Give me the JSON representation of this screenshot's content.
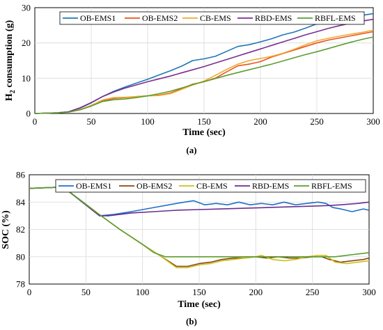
{
  "chart_data": [
    {
      "type": "line",
      "caption": "(a)",
      "xlabel": "Time (sec)",
      "ylabel_main": "H",
      "ylabel_sub": "2",
      "ylabel_rest": " consumption (g)",
      "xlim": [
        0,
        300
      ],
      "ylim": [
        0,
        30
      ],
      "xticks": [
        "0",
        "50",
        "100",
        "150",
        "200",
        "250",
        "300"
      ],
      "yticks": [
        "0",
        "10",
        "20",
        "30"
      ],
      "grid": true,
      "legend_position": "top",
      "series": [
        {
          "name": "OB-EMS1",
          "color": "#1f77b4",
          "x": [
            0,
            20,
            30,
            40,
            50,
            60,
            70,
            80,
            90,
            100,
            110,
            120,
            130,
            140,
            150,
            160,
            170,
            180,
            190,
            200,
            210,
            220,
            230,
            240,
            250,
            260,
            270,
            280,
            290,
            300
          ],
          "y": [
            0,
            0.2,
            0.5,
            1.5,
            3,
            4.8,
            6.3,
            7.5,
            8.6,
            9.7,
            10.9,
            12.1,
            13.4,
            15,
            15.5,
            16.2,
            17.6,
            19,
            19.5,
            20.3,
            21.2,
            22.3,
            23.1,
            24.2,
            25.4,
            26.3,
            27,
            27.4,
            27.8,
            28.3
          ]
        },
        {
          "name": "OB-EMS2",
          "color": "#e8541a",
          "x": [
            0,
            20,
            30,
            40,
            50,
            60,
            70,
            80,
            90,
            100,
            110,
            120,
            130,
            140,
            150,
            160,
            170,
            180,
            190,
            200,
            210,
            220,
            230,
            240,
            250,
            260,
            270,
            280,
            290,
            300
          ],
          "y": [
            0,
            0.2,
            0.4,
            1.1,
            2.2,
            3.6,
            4.3,
            4.5,
            4.8,
            5.0,
            5.2,
            5.8,
            7.0,
            8.3,
            9.0,
            10.0,
            11.8,
            13.5,
            14.0,
            14.7,
            16.0,
            17.0,
            18.0,
            19.0,
            20.0,
            20.8,
            21.4,
            22.0,
            22.6,
            23.2
          ]
        },
        {
          "name": "CB-EMS",
          "color": "#f0a830",
          "x": [
            0,
            20,
            30,
            40,
            50,
            60,
            70,
            80,
            90,
            100,
            110,
            120,
            130,
            140,
            150,
            160,
            170,
            180,
            190,
            200,
            210,
            220,
            230,
            240,
            250,
            260,
            270,
            280,
            290,
            300
          ],
          "y": [
            0,
            0.2,
            0.4,
            1.1,
            2.3,
            3.8,
            4.5,
            4.6,
            4.8,
            5.0,
            5.1,
            5.6,
            6.8,
            8.1,
            9.2,
            10.8,
            12.5,
            14.0,
            15.0,
            15.6,
            16.2,
            17.1,
            18.2,
            19.5,
            20.6,
            21.3,
            21.9,
            22.5,
            23.0,
            23.6
          ]
        },
        {
          "name": "RBD-EMS",
          "color": "#7b2d8e",
          "x": [
            0,
            20,
            30,
            40,
            50,
            60,
            70,
            80,
            90,
            100,
            110,
            120,
            130,
            140,
            150,
            160,
            170,
            180,
            190,
            200,
            210,
            220,
            230,
            240,
            250,
            260,
            270,
            280,
            290,
            300
          ],
          "y": [
            0,
            0.2,
            0.5,
            1.6,
            3.1,
            4.8,
            6.1,
            7.2,
            8.1,
            9.0,
            9.8,
            10.6,
            11.5,
            12.4,
            13.3,
            14.3,
            15.3,
            16.3,
            17.3,
            18.3,
            19.3,
            20.3,
            21.3,
            22.3,
            23.2,
            24.1,
            24.9,
            25.6,
            26.2,
            26.7
          ]
        },
        {
          "name": "RBFL-EMS",
          "color": "#5a9e2f",
          "x": [
            0,
            20,
            30,
            40,
            50,
            60,
            70,
            80,
            90,
            100,
            110,
            120,
            130,
            140,
            150,
            160,
            170,
            180,
            190,
            200,
            210,
            220,
            230,
            240,
            250,
            260,
            270,
            280,
            290,
            300
          ],
          "y": [
            0,
            0.2,
            0.4,
            1.0,
            2.1,
            3.4,
            3.9,
            4.1,
            4.5,
            5.0,
            5.6,
            6.3,
            7.2,
            8.2,
            9.0,
            9.9,
            10.8,
            11.6,
            12.4,
            13.2,
            14.0,
            14.9,
            15.8,
            16.7,
            17.5,
            18.4,
            19.3,
            20.2,
            21.0,
            21.7
          ]
        }
      ]
    },
    {
      "type": "line",
      "caption": "(b)",
      "xlabel": "Time (sec)",
      "ylabel": "SOC (%)",
      "xlim": [
        0,
        300
      ],
      "ylim": [
        78,
        86
      ],
      "xticks": [
        "0",
        "50",
        "100",
        "150",
        "200",
        "250",
        "300"
      ],
      "yticks": [
        "78",
        "80",
        "82",
        "84",
        "86"
      ],
      "grid": true,
      "legend_position": "top",
      "series": [
        {
          "name": "OB-EMS1",
          "color": "#1f6fc4",
          "x": [
            0,
            30,
            62,
            75,
            90,
            110,
            130,
            145,
            155,
            165,
            175,
            185,
            195,
            205,
            215,
            225,
            235,
            245,
            255,
            262,
            268,
            275,
            285,
            295,
            300
          ],
          "y": [
            85,
            85.1,
            83,
            83.1,
            83.3,
            83.6,
            83.9,
            84.1,
            83.8,
            83.9,
            83.8,
            84.0,
            83.8,
            83.9,
            83.8,
            84.0,
            83.8,
            83.9,
            84.0,
            83.9,
            83.6,
            83.5,
            83.3,
            83.5,
            83.4
          ]
        },
        {
          "name": "OB-EMS2",
          "color": "#8b4513",
          "x": [
            0,
            30,
            60,
            80,
            100,
            115,
            130,
            140,
            150,
            160,
            170,
            180,
            190,
            200,
            210,
            220,
            230,
            240,
            250,
            258,
            265,
            275,
            285,
            295,
            300
          ],
          "y": [
            85,
            85.1,
            83.2,
            82.0,
            80.9,
            80.1,
            79.3,
            79.3,
            79.5,
            79.6,
            79.8,
            79.9,
            79.9,
            80.0,
            79.9,
            80.0,
            79.9,
            79.9,
            80.0,
            80.0,
            79.8,
            79.6,
            79.7,
            79.8,
            79.9
          ]
        },
        {
          "name": "CB-EMS",
          "color": "#c8c020",
          "x": [
            0,
            30,
            60,
            80,
            100,
            115,
            130,
            140,
            150,
            160,
            170,
            180,
            190,
            200,
            205,
            215,
            225,
            235,
            245,
            255,
            262,
            270,
            280,
            290,
            300
          ],
          "y": [
            85,
            85.1,
            83.2,
            82.0,
            80.9,
            80.1,
            79.2,
            79.2,
            79.4,
            79.5,
            79.7,
            79.8,
            79.9,
            80.0,
            80.1,
            79.8,
            79.7,
            79.8,
            80.0,
            80.1,
            80.1,
            79.6,
            79.5,
            79.6,
            79.7
          ]
        },
        {
          "name": "RBD-EMS",
          "color": "#6a2c91",
          "x": [
            0,
            30,
            62,
            70,
            90,
            110,
            130,
            150,
            170,
            190,
            210,
            230,
            250,
            265,
            275,
            290,
            300
          ],
          "y": [
            85,
            85.1,
            83,
            83.0,
            83.2,
            83.3,
            83.4,
            83.45,
            83.5,
            83.55,
            83.6,
            83.65,
            83.7,
            83.75,
            83.8,
            83.9,
            84.0
          ]
        },
        {
          "name": "RBFL-EMS",
          "color": "#5a9e2f",
          "x": [
            0,
            30,
            60,
            80,
            100,
            110,
            120,
            130,
            140,
            150,
            160,
            170,
            180,
            190,
            200,
            210,
            220,
            230,
            240,
            250,
            260,
            270,
            280,
            290,
            300
          ],
          "y": [
            85,
            85.1,
            83.2,
            82.0,
            80.9,
            80.3,
            80.0,
            80.0,
            80.0,
            80.0,
            80.0,
            80.0,
            80.0,
            80.0,
            80.0,
            80.0,
            80.0,
            80.0,
            80.0,
            80.0,
            80.0,
            80.0,
            80.1,
            80.2,
            80.3
          ]
        }
      ]
    }
  ]
}
